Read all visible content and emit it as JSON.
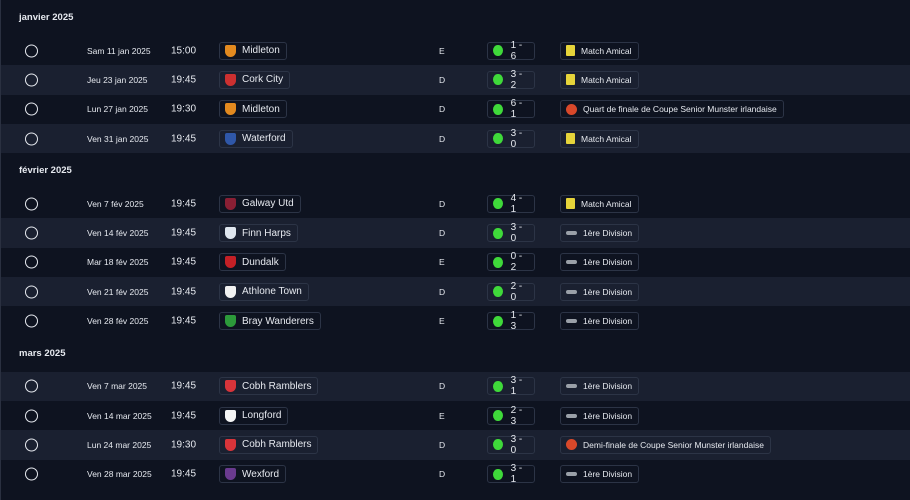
{
  "months": [
    {
      "title": "janvier 2025",
      "matches": [
        {
          "date": "Sam 11 jan 2025",
          "time": "15:00",
          "team": "Midleton",
          "venue": "E",
          "score": "1 - 6",
          "competition": "Match Amical"
        },
        {
          "date": "Jeu 23 jan 2025",
          "time": "19:45",
          "team": "Cork City",
          "venue": "D",
          "score": "3 - 2",
          "competition": "Match Amical"
        },
        {
          "date": "Lun 27 jan 2025",
          "time": "19:30",
          "team": "Midleton",
          "venue": "D",
          "score": "6 - 1",
          "competition": "Quart de finale de Coupe Senior Munster irlandaise"
        },
        {
          "date": "Ven 31 jan 2025",
          "time": "19:45",
          "team": "Waterford",
          "venue": "D",
          "score": "3 - 0",
          "competition": "Match Amical"
        }
      ]
    },
    {
      "title": "février 2025",
      "matches": [
        {
          "date": "Ven 7 fév 2025",
          "time": "19:45",
          "team": "Galway Utd",
          "venue": "D",
          "score": "4 - 1",
          "competition": "Match Amical"
        },
        {
          "date": "Ven 14 fév 2025",
          "time": "19:45",
          "team": "Finn Harps",
          "venue": "D",
          "score": "3 - 0",
          "competition": "1ère Division"
        },
        {
          "date": "Mar 18 fév 2025",
          "time": "19:45",
          "team": "Dundalk",
          "venue": "E",
          "score": "0 - 2",
          "competition": "1ère Division"
        },
        {
          "date": "Ven 21 fév 2025",
          "time": "19:45",
          "team": "Athlone Town",
          "venue": "D",
          "score": "2 - 0",
          "competition": "1ère Division"
        },
        {
          "date": "Ven 28 fév 2025",
          "time": "19:45",
          "team": "Bray Wanderers",
          "venue": "E",
          "score": "1 - 3",
          "competition": "1ère Division"
        }
      ]
    },
    {
      "title": "mars 2025",
      "matches": [
        {
          "date": "Ven 7 mar 2025",
          "time": "19:45",
          "team": "Cobh Ramblers",
          "venue": "D",
          "score": "3 - 1",
          "competition": "1ère Division"
        },
        {
          "date": "Ven 14 mar 2025",
          "time": "19:45",
          "team": "Longford",
          "venue": "E",
          "score": "2 - 3",
          "competition": "1ère Division"
        },
        {
          "date": "Lun 24 mar 2025",
          "time": "19:30",
          "team": "Cobh Ramblers",
          "venue": "D",
          "score": "3 - 0",
          "competition": "Demi-finale de Coupe Senior Munster irlandaise"
        },
        {
          "date": "Ven 28 mar 2025",
          "time": "19:45",
          "team": "Wexford",
          "venue": "D",
          "score": "3 - 1",
          "competition": "1ère Division"
        }
      ]
    }
  ]
}
